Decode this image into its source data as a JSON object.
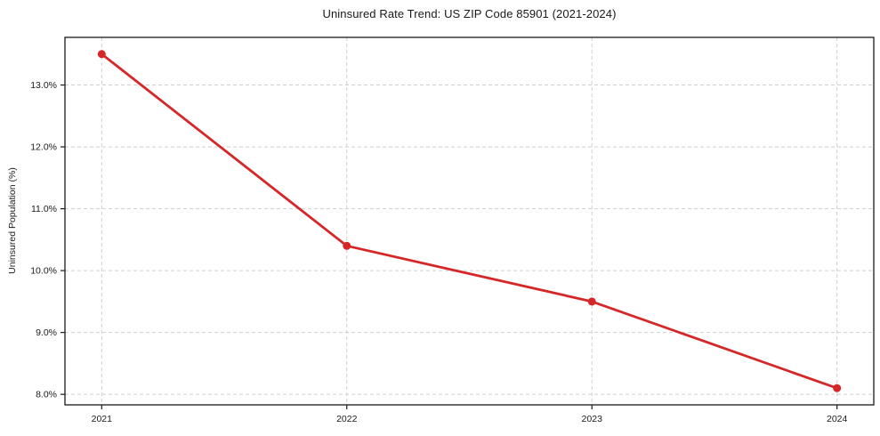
{
  "page": {
    "title": "Uninsured Rate Trend: US ZIP Code 85901 (2021-2024)"
  },
  "chart_data": {
    "type": "line",
    "title": "Uninsured Rate Trend: US ZIP Code 85901 (2021-2024)",
    "xlabel": "",
    "ylabel": "Uninsured Population (%)",
    "x": [
      2021,
      2022,
      2023,
      2024
    ],
    "values": [
      13.5,
      10.4,
      9.5,
      8.1
    ],
    "xtick_labels": [
      "2021",
      "2022",
      "2023",
      "2024"
    ],
    "yticks": [
      8.0,
      9.0,
      10.0,
      11.0,
      12.0,
      13.0
    ],
    "ytick_labels": [
      "8.0%",
      "9.0%",
      "10.0%",
      "11.0%",
      "12.0%",
      "13.0%"
    ],
    "xlim": [
      2020.85,
      2024.15
    ],
    "ylim": [
      7.83,
      13.77
    ],
    "grid": true,
    "grid_style": "dashed",
    "legend": false,
    "line_color": "#d62728",
    "grid_color": "#cfcfcf",
    "spine_color": "#1a1a1a",
    "marker": "circle"
  }
}
